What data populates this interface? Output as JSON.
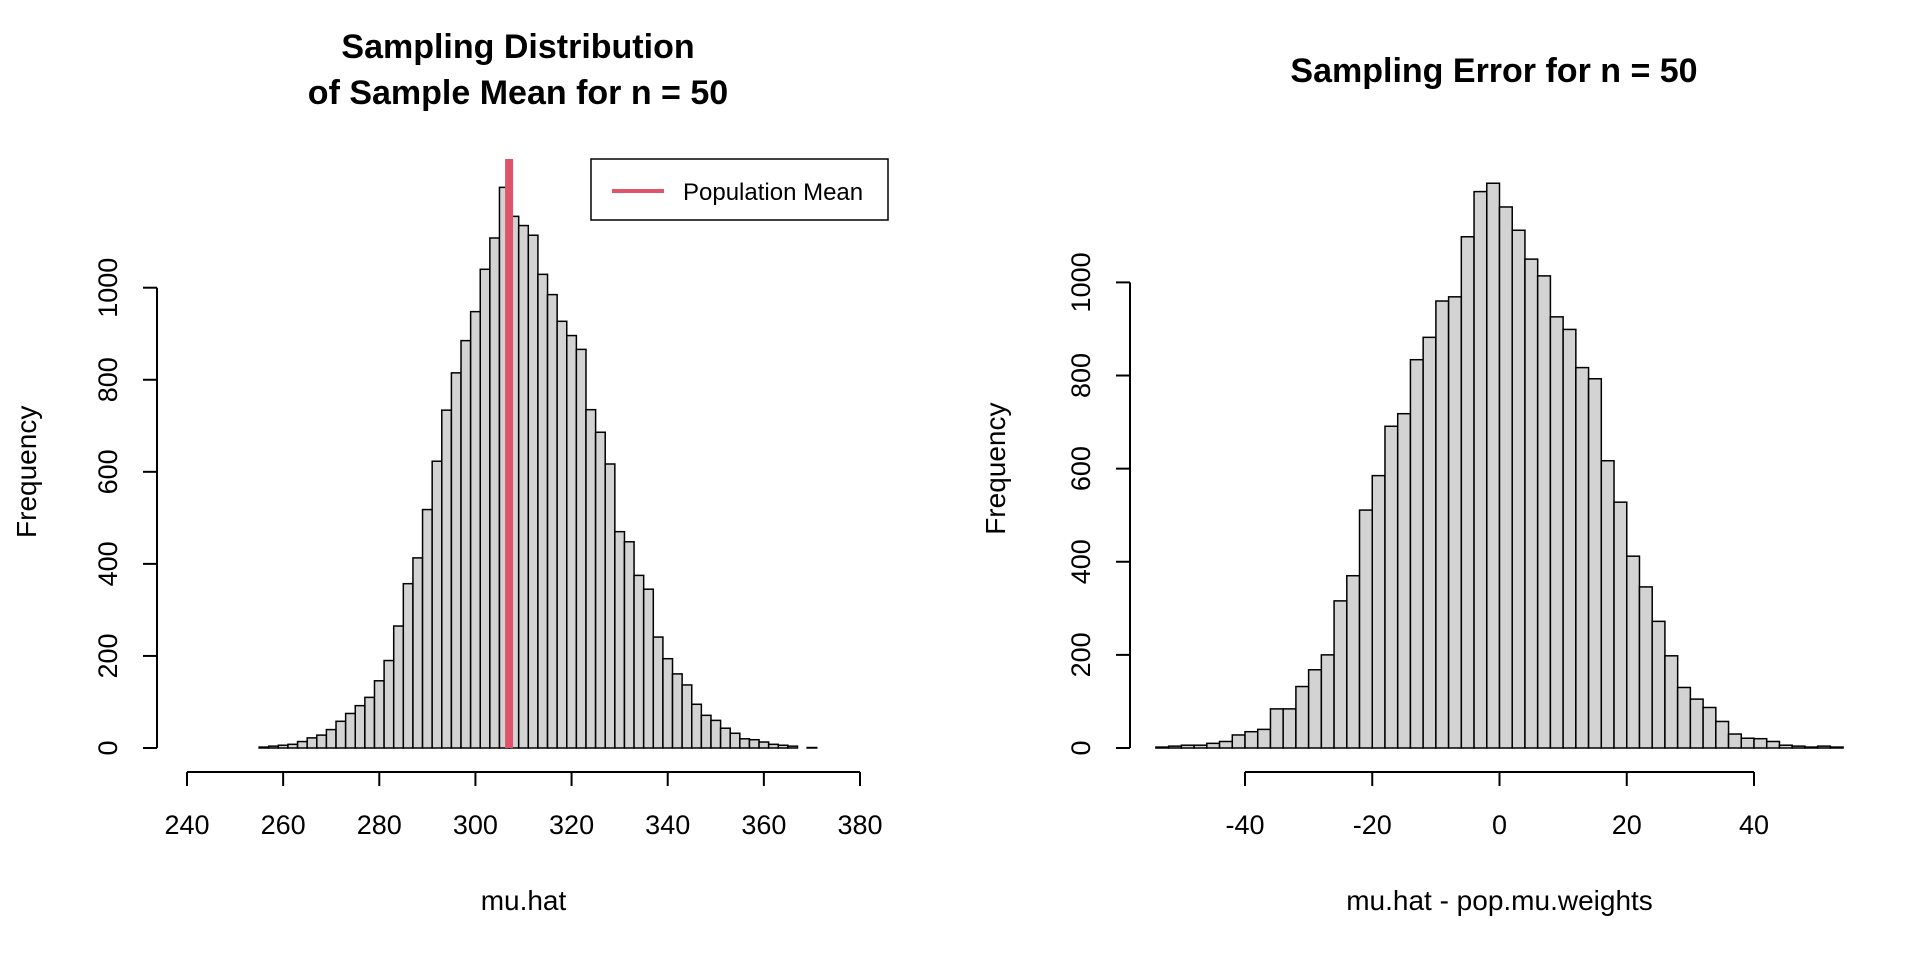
{
  "chart_data": [
    {
      "type": "histogram",
      "title_lines": [
        "Sampling Distribution",
        "of Sample Mean for n = 50"
      ],
      "xlabel": "mu.hat",
      "ylabel": "Frequency",
      "xlim": [
        240,
        380
      ],
      "x_ticks": [
        240,
        260,
        280,
        300,
        320,
        340,
        360,
        380
      ],
      "y_ticks": [
        0,
        200,
        400,
        600,
        800,
        1000
      ],
      "bin_start": 255,
      "bin_width": 2,
      "counts": [
        2,
        4,
        6,
        8,
        14,
        22,
        28,
        40,
        58,
        75,
        92,
        110,
        146,
        190,
        265,
        357,
        413,
        518,
        623,
        734,
        815,
        885,
        948,
        1040,
        1108,
        1218,
        1155,
        1135,
        1114,
        1029,
        985,
        927,
        896,
        866,
        735,
        686,
        617,
        470,
        448,
        375,
        345,
        241,
        194,
        161,
        137,
        95,
        71,
        60,
        43,
        32,
        20,
        18,
        13,
        8,
        6,
        4,
        0,
        1,
        0,
        0
      ],
      "bar_fill": "#d3d3d3",
      "reference_line": {
        "x": 307,
        "color": "#df536b"
      },
      "legend": {
        "label": "Population Mean",
        "position": "top-right",
        "color": "#df536b"
      }
    },
    {
      "type": "histogram",
      "title_lines": [
        "Sampling Error for n = 50"
      ],
      "xlabel": "mu.hat - pop.mu.weights",
      "ylabel": "Frequency",
      "x_ticks": [
        -40,
        -20,
        0,
        20,
        40
      ],
      "y_ticks": [
        0,
        200,
        400,
        600,
        800,
        1000
      ],
      "bin_start": -54,
      "bin_width": 2,
      "counts": [
        2,
        4,
        6,
        6,
        10,
        14,
        28,
        35,
        40,
        84,
        84,
        132,
        168,
        200,
        316,
        370,
        511,
        585,
        691,
        718,
        834,
        882,
        960,
        969,
        1098,
        1195,
        1213,
        1162,
        1112,
        1050,
        1014,
        926,
        899,
        817,
        793,
        617,
        528,
        412,
        346,
        272,
        198,
        130,
        105,
        87,
        57,
        30,
        21,
        20,
        14,
        6,
        4,
        2,
        4,
        2
      ],
      "bar_fill": "#d3d3d3"
    }
  ]
}
